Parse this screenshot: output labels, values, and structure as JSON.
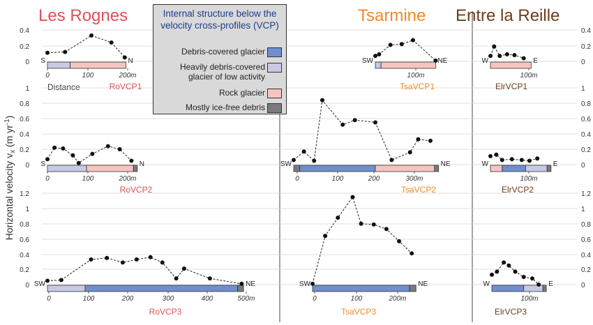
{
  "colors": {
    "debris_covered_glacier": "#6f8fcf",
    "low_activity_glacier": "#c9c8e6",
    "rock_glacier": "#f6c5c0",
    "ice_free_debris": "#7a7a7a",
    "les_rognes": "#e0505a",
    "tsarmine": "#f08a28",
    "entre_la_reille": "#6b3e1e",
    "legend_title": "#1f3c8f"
  },
  "legend": {
    "title": "Internal structure below the velocity cross-profiles (VCP)",
    "items": [
      {
        "label": "Debris-covered glacier",
        "color": "#6f8fcf"
      },
      {
        "label": "Heavily debris-covered glacier of low activity",
        "color": "#c9c8e6"
      },
      {
        "label": "Rock glacier",
        "color": "#f6c5c0"
      },
      {
        "label": "Mostly ice-free debris",
        "color": "#7a7a7a"
      }
    ]
  },
  "chart_data": {
    "type": "line",
    "ylabel": "Horizontal velocity v_x (m yr^-1)",
    "sites": [
      "Les Rognes",
      "Tsarmine",
      "Entre la Reille"
    ],
    "distance_label": "Distance",
    "row_y_ticks": [
      [
        "0",
        "0.2",
        "0.4"
      ],
      [
        "0",
        "0.2",
        "0.4",
        "0.6",
        "0.8",
        "1"
      ],
      [
        "0",
        "0.2",
        "0.4",
        "0.6",
        "0.8",
        "1",
        "1.2"
      ]
    ],
    "profiles": [
      {
        "name": "RoVCP1",
        "site": "Les Rognes",
        "row": 1,
        "start": "S",
        "end": "N",
        "x_ticks": [
          "0",
          "100",
          "200m"
        ],
        "x": [
          0,
          45,
          112,
          163,
          197
        ],
        "y": [
          0.11,
          0.12,
          0.33,
          0.24,
          0.05
        ],
        "segments": [
          {
            "from": 0,
            "to": 58,
            "type": "low_activity"
          },
          {
            "from": 58,
            "to": 200,
            "type": "rock_glacier"
          }
        ]
      },
      {
        "name": "TsaVCP1",
        "site": "Tsarmine",
        "row": 1,
        "start": "SW",
        "end": "NE",
        "x_ticks": [
          "100m"
        ],
        "x": [
          0,
          10,
          40,
          70,
          100,
          160
        ],
        "y": [
          0.07,
          0.09,
          0.21,
          0.22,
          0.27,
          0.01
        ],
        "segments": [
          {
            "from": 0,
            "to": 15,
            "type": "low_activity"
          },
          {
            "from": 15,
            "to": 160,
            "type": "rock_glacier"
          }
        ]
      },
      {
        "name": "ElrVCP1",
        "site": "Entre la Reille",
        "row": 1,
        "start": "W",
        "end": "E",
        "x_ticks": [
          "100m"
        ],
        "x": [
          0,
          10,
          25,
          45,
          65,
          90
        ],
        "y": [
          0.07,
          0.19,
          0.07,
          0.09,
          0.08,
          0.04
        ],
        "segments": [
          {
            "from": 0,
            "to": 110,
            "type": "rock_glacier"
          }
        ]
      },
      {
        "name": "RoVCP2",
        "site": "Les Rognes",
        "row": 2,
        "start": "S",
        "end": "N",
        "x_ticks": [
          "0",
          "100",
          "200m"
        ],
        "x": [
          0,
          18,
          40,
          65,
          80,
          115,
          155,
          185,
          215
        ],
        "y": [
          0.07,
          0.22,
          0.21,
          0.12,
          0.02,
          0.14,
          0.24,
          0.2,
          0.05
        ],
        "segments": [
          {
            "from": 0,
            "to": 100,
            "type": "low_activity"
          },
          {
            "from": 100,
            "to": 220,
            "type": "rock_glacier"
          },
          {
            "from": 220,
            "to": 230,
            "type": "ice_free_debris"
          }
        ]
      },
      {
        "name": "TsaVCP2",
        "site": "Tsarmine",
        "row": 2,
        "start": "SW",
        "end": "NE",
        "x_ticks": [
          "0",
          "100",
          "200",
          "300m"
        ],
        "x": [
          0,
          25,
          50,
          70,
          120,
          150,
          200,
          240,
          285,
          305,
          335
        ],
        "y": [
          0.06,
          0.17,
          0.05,
          0.84,
          0.52,
          0.58,
          0.55,
          0.06,
          0.16,
          0.33,
          0.31
        ],
        "segments": [
          {
            "from": 0,
            "to": 15,
            "type": "ice_free_debris"
          },
          {
            "from": 15,
            "to": 200,
            "type": "debris_covered"
          },
          {
            "from": 200,
            "to": 345,
            "type": "rock_glacier"
          },
          {
            "from": 345,
            "to": 355,
            "type": "ice_free_debris"
          }
        ]
      },
      {
        "name": "ElrVCP2",
        "site": "Entre la Reille",
        "row": 2,
        "start": "W",
        "end": "E",
        "x_ticks": [
          "100m"
        ],
        "x": [
          0,
          15,
          30,
          55,
          80,
          100,
          120
        ],
        "y": [
          0.11,
          0.13,
          0.06,
          0.07,
          0.06,
          0.05,
          0.08
        ],
        "segments": [
          {
            "from": 0,
            "to": 30,
            "type": "rock_glacier"
          },
          {
            "from": 30,
            "to": 90,
            "type": "debris_covered"
          },
          {
            "from": 90,
            "to": 145,
            "type": "low_activity"
          },
          {
            "from": 145,
            "to": 155,
            "type": "ice_free_debris"
          }
        ]
      },
      {
        "name": "RoVCP3",
        "site": "Les Rognes",
        "row": 3,
        "start": "SW",
        "end": "NE",
        "x_ticks": [
          "0",
          "100",
          "200",
          "300",
          "400",
          "500m"
        ],
        "x": [
          0,
          35,
          110,
          150,
          190,
          225,
          260,
          290,
          325,
          345,
          410,
          490
        ],
        "y": [
          0.05,
          0.06,
          0.33,
          0.35,
          0.29,
          0.33,
          0.36,
          0.29,
          0.08,
          0.21,
          0.08,
          0.01
        ],
        "segments": [
          {
            "from": 0,
            "to": 95,
            "type": "low_activity"
          },
          {
            "from": 95,
            "to": 480,
            "type": "debris_covered"
          },
          {
            "from": 480,
            "to": 495,
            "type": "ice_free_debris"
          }
        ]
      },
      {
        "name": "TsaVCP3",
        "site": "Tsarmine",
        "row": 3,
        "start": "SW",
        "end": "NE",
        "x_ticks": [
          "0",
          "100",
          "200m"
        ],
        "x": [
          0,
          30,
          60,
          95,
          115,
          145,
          175,
          205,
          235
        ],
        "y": [
          0.01,
          0.64,
          0.88,
          1.15,
          0.8,
          0.79,
          0.73,
          0.57,
          0.41
        ],
        "segments": [
          {
            "from": 0,
            "to": 230,
            "type": "debris_covered"
          },
          {
            "from": 230,
            "to": 245,
            "type": "ice_free_debris"
          }
        ]
      },
      {
        "name": "ElrVCP3",
        "site": "Entre la Reille",
        "row": 3,
        "start": "W",
        "end": "E",
        "x_ticks": [
          "100m"
        ],
        "x": [
          0,
          12,
          28,
          40,
          55,
          75,
          95,
          110
        ],
        "y": [
          0.13,
          0.17,
          0.29,
          0.25,
          0.17,
          0.1,
          0.08,
          0.0
        ],
        "segments": [
          {
            "from": 0,
            "to": 75,
            "type": "debris_covered"
          },
          {
            "from": 75,
            "to": 120,
            "type": "low_activity"
          },
          {
            "from": 120,
            "to": 128,
            "type": "ice_free_debris"
          }
        ]
      }
    ]
  }
}
